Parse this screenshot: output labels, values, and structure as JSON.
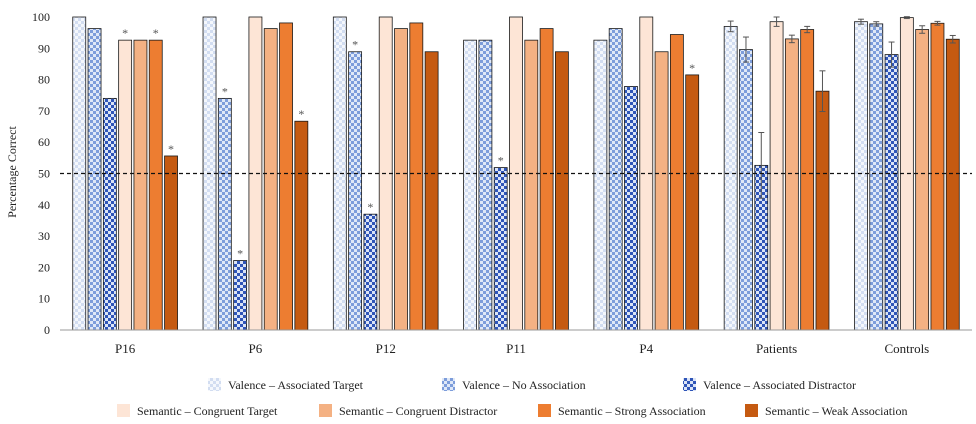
{
  "chart_data": {
    "type": "bar",
    "ylabel": "Percentage Correct",
    "ylim": [
      0,
      100
    ],
    "yticks": [
      0,
      10,
      20,
      30,
      40,
      50,
      60,
      70,
      80,
      90,
      100
    ],
    "reference_line": 50,
    "categories": [
      "P16",
      "P6",
      "P12",
      "P11",
      "P4",
      "Patients",
      "Controls"
    ],
    "series": [
      {
        "name": "Valence – Associated Target",
        "values": [
          100,
          100,
          100,
          92.6,
          92.6,
          97,
          98.5
        ],
        "errors": [
          null,
          null,
          null,
          null,
          null,
          1.7,
          0.8
        ],
        "stars": [
          false,
          false,
          false,
          false,
          false,
          false,
          false
        ],
        "color": "#dfe7f4",
        "pattern": "checker-light"
      },
      {
        "name": "Valence – No Association",
        "values": [
          96.3,
          74,
          88.9,
          92.6,
          96.3,
          89.6,
          97.8
        ],
        "errors": [
          null,
          null,
          null,
          null,
          null,
          4,
          0.7
        ],
        "stars": [
          false,
          true,
          true,
          false,
          false,
          false,
          false
        ],
        "color": "#a7bde6",
        "pattern": "checker-mid"
      },
      {
        "name": "Valence – Associated Distractor",
        "values": [
          74,
          22.2,
          37,
          51.9,
          77.8,
          52.6,
          88
        ],
        "errors": [
          null,
          null,
          null,
          null,
          null,
          10.5,
          4
        ],
        "stars": [
          false,
          true,
          true,
          true,
          false,
          false,
          false
        ],
        "color": "#3f67c4",
        "pattern": "checker-dark"
      },
      {
        "name": "Semantic – Congruent Target",
        "values": [
          92.6,
          100,
          100,
          100,
          100,
          98.5,
          99.8
        ],
        "errors": [
          null,
          null,
          null,
          null,
          null,
          1.5,
          0.3
        ],
        "stars": [
          true,
          false,
          false,
          false,
          false,
          false,
          false
        ],
        "color": "#fde5d6",
        "pattern": "solid"
      },
      {
        "name": "Semantic – Congruent Distractor",
        "values": [
          92.6,
          96.3,
          96.3,
          92.6,
          88.9,
          93,
          96
        ],
        "errors": [
          null,
          null,
          null,
          null,
          null,
          1.2,
          1.2
        ],
        "stars": [
          false,
          false,
          false,
          false,
          false,
          false,
          false
        ],
        "color": "#f4b183",
        "pattern": "solid"
      },
      {
        "name": "Semantic – Strong Association",
        "values": [
          92.6,
          98.1,
          98.1,
          96.3,
          94.4,
          96,
          98
        ],
        "errors": [
          null,
          null,
          null,
          null,
          null,
          1,
          0.6
        ],
        "stars": [
          true,
          false,
          false,
          false,
          false,
          false,
          false
        ],
        "color": "#ed7d31",
        "pattern": "solid"
      },
      {
        "name": "Semantic – Weak Association",
        "values": [
          55.6,
          66.7,
          88.9,
          88.9,
          81.5,
          76.3,
          92.9
        ],
        "errors": [
          null,
          null,
          null,
          null,
          null,
          6.5,
          1.2
        ],
        "stars": [
          true,
          true,
          false,
          false,
          true,
          false,
          false
        ],
        "color": "#c55a11",
        "pattern": "solid"
      }
    ],
    "star_symbol": "*",
    "legend_position": "bottom"
  }
}
